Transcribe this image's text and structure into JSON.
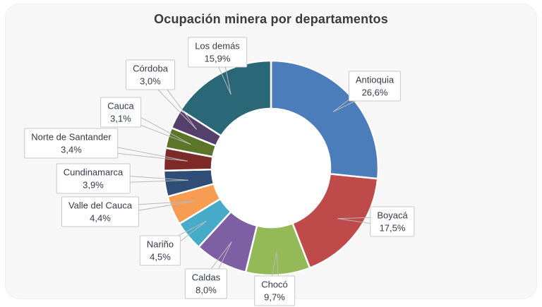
{
  "page": {
    "background_color": "#ffffff",
    "card_color": "#f7f7f8"
  },
  "chart_data": {
    "type": "pie",
    "subtype": "donut",
    "title": "Ocupación minera por departamentos",
    "categories": [
      "Antioquia",
      "Boyacá",
      "Chocó",
      "Caldas",
      "Nariño",
      "Valle del Cauca",
      "Cundinamarca",
      "Norte de Santander",
      "Cauca",
      "Córdoba",
      "Los demás"
    ],
    "values": [
      26.6,
      17.5,
      9.7,
      8.0,
      4.5,
      4.4,
      3.9,
      3.4,
      3.1,
      3.0,
      15.9
    ],
    "value_labels": [
      "26,6%",
      "17,5%",
      "9,7%",
      "8,0%",
      "4,5%",
      "4,4%",
      "3,9%",
      "3,4%",
      "3,1%",
      "3,0%",
      "15,9%"
    ],
    "colors": [
      "#4a7dba",
      "#bf4a4a",
      "#94ba58",
      "#7e5fa3",
      "#45abc9",
      "#f79c53",
      "#2e4d77",
      "#7d2a29",
      "#5d7529",
      "#54406b",
      "#2a6777"
    ],
    "start_angle_deg": 0,
    "direction": "clockwise",
    "inner_radius_ratio": 0.55,
    "legend": "none",
    "label_style": "callout boxes with gray leader lines",
    "slice_gap_color": "#ffffff",
    "leader_line_color": "#b9b9b9"
  }
}
